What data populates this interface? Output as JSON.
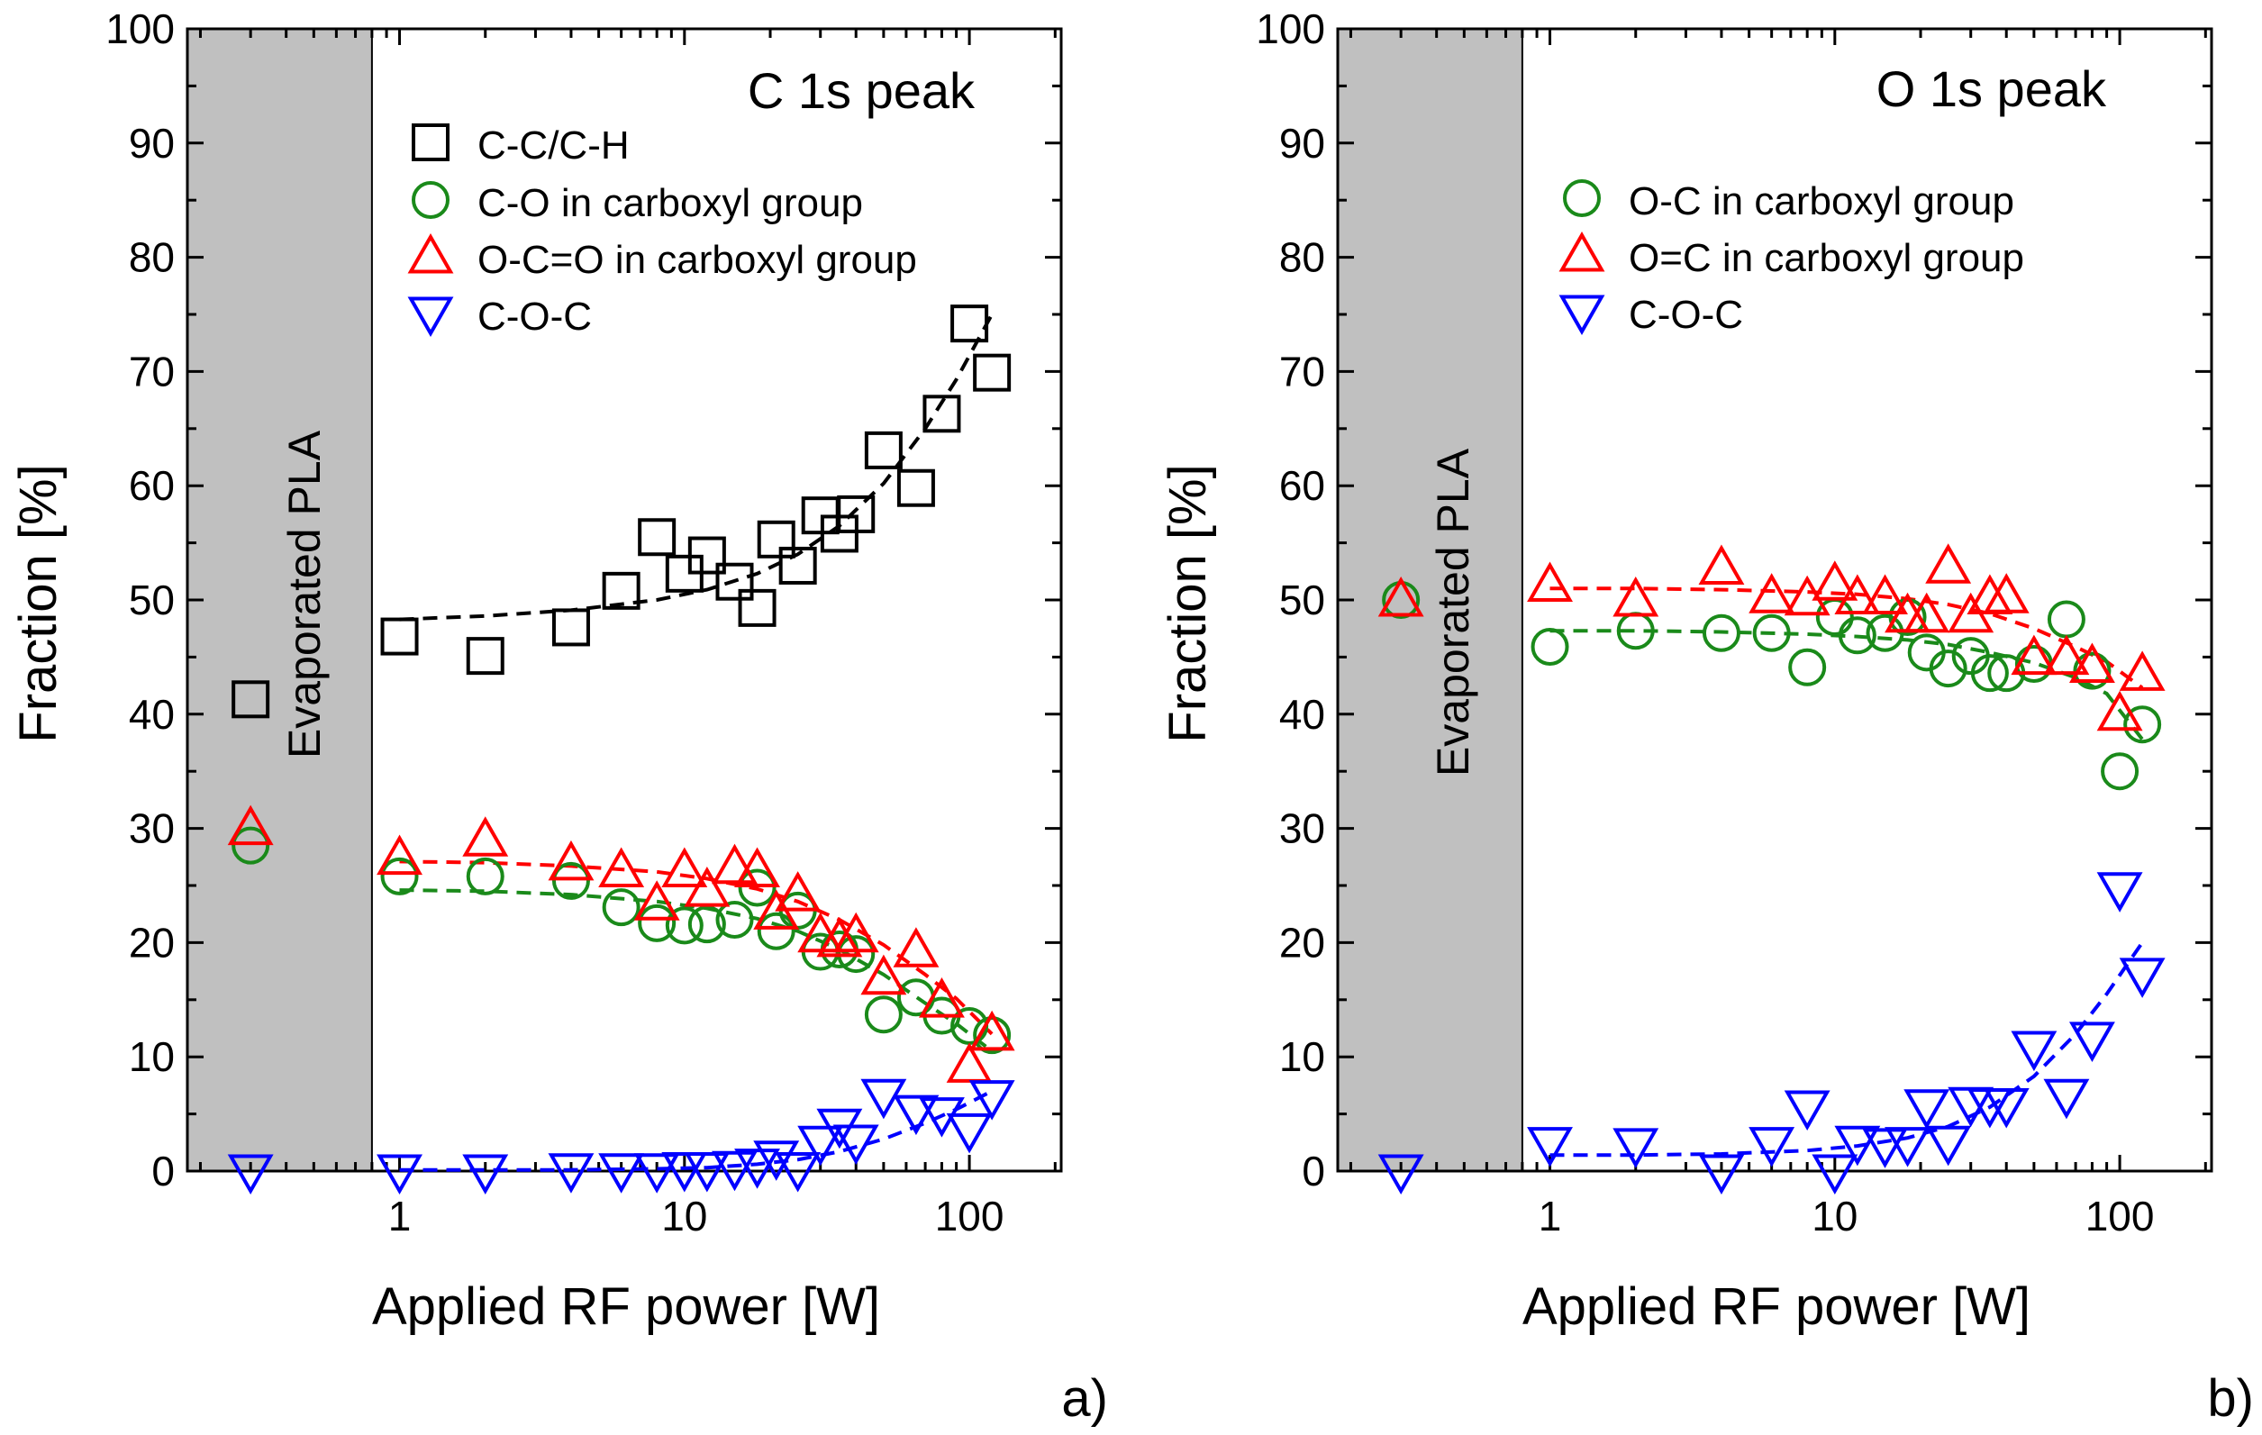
{
  "colors": {
    "black": "#000000",
    "green": "#1a8a1a",
    "red": "#ff0000",
    "blue": "#0000ff",
    "band": "#c0c0c0"
  },
  "panels": [
    {
      "letter": "a)",
      "title": "C 1s peak",
      "band_label": "Evaporated PLA",
      "legend_top": true
    },
    {
      "letter": "b)",
      "title": "O 1s peak",
      "band_label": "Evaporated PLA",
      "legend_top": false
    }
  ],
  "chart_data": [
    {
      "type": "scatter",
      "title": "C 1s peak",
      "xlabel": "Applied RF power [W]",
      "ylabel": "Fraction [%]",
      "xscale": "log",
      "xlim": [
        0.18,
        210
      ],
      "ylim": [
        0,
        100
      ],
      "xticks": [
        1,
        10,
        100
      ],
      "xtick_labels": [
        "1",
        "10",
        "100"
      ],
      "yticks": [
        0,
        10,
        20,
        30,
        40,
        50,
        60,
        70,
        80,
        90,
        100
      ],
      "ytick_labels": [
        "0",
        "10",
        "20",
        "30",
        "40",
        "50",
        "60",
        "70",
        "80",
        "90",
        "100"
      ],
      "shaded_region": {
        "x_from": 0.18,
        "x_to": 0.8,
        "label": "Evaporated PLA"
      },
      "series": [
        {
          "name": "C-C/C-H",
          "marker": "square",
          "color": "black",
          "x": [
            0.3,
            1,
            2,
            4,
            6,
            8,
            10,
            12,
            15,
            18,
            21,
            25,
            30,
            35,
            40,
            50,
            65,
            80,
            100,
            120
          ],
          "y": [
            41.3,
            46.8,
            45.1,
            47.6,
            50.8,
            55.5,
            52.3,
            53.9,
            51.6,
            49.3,
            55.3,
            53.0,
            57.4,
            55.8,
            57.5,
            63.1,
            59.8,
            66.3,
            74.2,
            69.9
          ],
          "fit_x": [
            1,
            2,
            4,
            8,
            12,
            18,
            25,
            35,
            50,
            70,
            90,
            120
          ],
          "fit_y": [
            48.3,
            48.6,
            49.1,
            50.0,
            50.9,
            52.3,
            54.0,
            56.5,
            60.2,
            65.0,
            69.3,
            75.0
          ]
        },
        {
          "name": "C-O in carboxyl group",
          "marker": "circle",
          "color": "green",
          "x": [
            0.3,
            1,
            2,
            4,
            6,
            8,
            10,
            12,
            15,
            18,
            21,
            25,
            30,
            35,
            40,
            50,
            65,
            80,
            100,
            120
          ],
          "y": [
            28.5,
            25.8,
            25.8,
            25.4,
            23.1,
            21.7,
            21.5,
            21.6,
            22.0,
            24.8,
            21.0,
            22.8,
            19.2,
            19.4,
            19.0,
            13.7,
            15.2,
            13.6,
            12.7,
            11.9
          ],
          "fit_x": [
            1,
            2,
            4,
            8,
            12,
            18,
            25,
            35,
            50,
            70,
            90,
            120
          ],
          "fit_y": [
            24.6,
            24.5,
            24.2,
            23.6,
            23.0,
            22.1,
            21.0,
            19.4,
            17.2,
            14.7,
            12.9,
            10.5
          ]
        },
        {
          "name": "O-C=O in carboxyl group",
          "marker": "triangle-up",
          "color": "red",
          "x": [
            0.3,
            1,
            2,
            4,
            6,
            8,
            10,
            12,
            15,
            18,
            21,
            25,
            30,
            35,
            40,
            50,
            65,
            80,
            100,
            120
          ],
          "y": [
            30.0,
            27.4,
            29.0,
            26.9,
            26.3,
            23.4,
            26.3,
            24.6,
            26.6,
            26.3,
            22.6,
            24.2,
            20.6,
            20.2,
            20.6,
            16.9,
            19.3,
            14.9,
            9.2,
            12.0
          ],
          "fit_x": [
            1,
            2,
            4,
            8,
            12,
            18,
            25,
            35,
            50,
            70,
            90,
            120
          ],
          "fit_y": [
            27.1,
            27.0,
            26.7,
            26.2,
            25.6,
            24.7,
            23.6,
            22.0,
            19.8,
            17.2,
            15.1,
            12.0
          ]
        },
        {
          "name": "C-O-C",
          "marker": "triangle-down",
          "color": "blue",
          "x": [
            0.3,
            1,
            2,
            4,
            6,
            8,
            10,
            12,
            15,
            18,
            21,
            25,
            30,
            35,
            40,
            50,
            65,
            80,
            100,
            120
          ],
          "y": [
            0.0,
            0.0,
            0.0,
            0.1,
            0.1,
            0.1,
            0.2,
            0.2,
            0.3,
            0.5,
            1.2,
            0.2,
            2.5,
            4.0,
            2.6,
            6.6,
            5.2,
            5.0,
            3.6,
            6.5
          ],
          "fit_x": [
            1,
            2,
            4,
            8,
            12,
            18,
            25,
            35,
            50,
            70,
            90,
            120
          ],
          "fit_y": [
            0.1,
            0.1,
            0.1,
            0.2,
            0.3,
            0.6,
            1.0,
            1.7,
            2.8,
            4.2,
            5.4,
            7.0
          ]
        }
      ]
    },
    {
      "type": "scatter",
      "title": "O 1s peak",
      "xlabel": "Applied RF power [W]",
      "ylabel": "Fraction [%]",
      "xscale": "log",
      "xlim": [
        0.18,
        210
      ],
      "ylim": [
        0,
        100
      ],
      "xticks": [
        1,
        10,
        100
      ],
      "xtick_labels": [
        "1",
        "10",
        "100"
      ],
      "yticks": [
        0,
        10,
        20,
        30,
        40,
        50,
        60,
        70,
        80,
        90,
        100
      ],
      "ytick_labels": [
        "0",
        "10",
        "20",
        "30",
        "40",
        "50",
        "60",
        "70",
        "80",
        "90",
        "100"
      ],
      "shaded_region": {
        "x_from": 0.18,
        "x_to": 0.8,
        "label": "Evaporated PLA"
      },
      "series": [
        {
          "name": "O-C in carboxyl group",
          "marker": "circle",
          "color": "green",
          "x": [
            0.3,
            1,
            2,
            4,
            6,
            8,
            10,
            12,
            15,
            18,
            21,
            25,
            30,
            35,
            40,
            50,
            65,
            80,
            100,
            120
          ],
          "y": [
            50.0,
            45.9,
            47.3,
            47.1,
            47.1,
            44.1,
            48.5,
            46.9,
            47.1,
            48.5,
            45.4,
            44.0,
            45.1,
            43.6,
            43.6,
            44.4,
            48.3,
            43.8,
            35.0,
            39.1
          ],
          "fit_x": [
            1,
            2,
            4,
            8,
            12,
            18,
            25,
            35,
            50,
            70,
            90,
            120
          ],
          "fit_y": [
            47.3,
            47.3,
            47.2,
            47.0,
            46.8,
            46.5,
            46.1,
            45.4,
            44.5,
            43.2,
            41.8,
            37.8
          ]
        },
        {
          "name": "O=C in carboxyl group",
          "marker": "triangle-up",
          "color": "red",
          "x": [
            0.3,
            1,
            2,
            4,
            6,
            8,
            10,
            12,
            15,
            18,
            21,
            25,
            30,
            35,
            40,
            50,
            65,
            80,
            100,
            120
          ],
          "y": [
            50.0,
            51.3,
            50.0,
            52.8,
            50.3,
            50.1,
            51.4,
            50.2,
            50.2,
            48.6,
            48.6,
            52.9,
            48.6,
            50.2,
            50.3,
            44.9,
            44.9,
            44.2,
            40.0,
            43.5
          ],
          "fit_x": [
            1,
            2,
            4,
            8,
            12,
            18,
            25,
            35,
            50,
            70,
            90,
            120
          ],
          "fit_y": [
            51.0,
            51.0,
            50.9,
            50.7,
            50.5,
            50.1,
            49.6,
            48.8,
            47.5,
            45.9,
            44.6,
            42.3
          ]
        },
        {
          "name": "C-O-C",
          "marker": "triangle-down",
          "color": "blue",
          "x": [
            0.3,
            1,
            2,
            4,
            6,
            8,
            10,
            12,
            15,
            18,
            21,
            25,
            30,
            35,
            40,
            50,
            65,
            80,
            100,
            120
          ],
          "y": [
            0.0,
            2.4,
            2.3,
            0.0,
            2.4,
            5.6,
            0.0,
            2.5,
            2.3,
            2.4,
            5.7,
            2.5,
            5.9,
            5.8,
            5.8,
            10.8,
            6.6,
            11.6,
            24.7,
            17.2
          ],
          "fit_x": [
            1,
            2,
            4,
            8,
            12,
            18,
            25,
            35,
            50,
            70,
            90,
            120
          ],
          "fit_y": [
            1.4,
            1.4,
            1.5,
            1.8,
            2.2,
            2.9,
            3.9,
            5.6,
            8.3,
            12.0,
            15.5,
            20.0
          ]
        }
      ]
    }
  ]
}
